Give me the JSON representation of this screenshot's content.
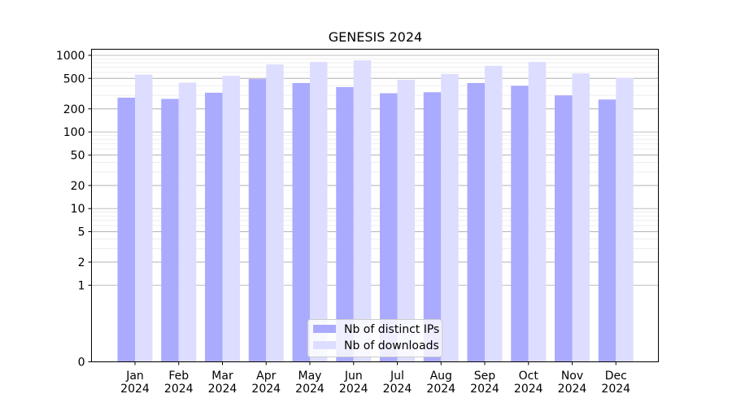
{
  "chart_data": {
    "type": "bar",
    "title": "GENESIS 2024",
    "xlabel": "",
    "ylabel": "",
    "y_scale": "symlog",
    "ylim": [
      0,
      1200
    ],
    "y_major_ticks": [
      0,
      1,
      2,
      5,
      10,
      20,
      50,
      100,
      200,
      500,
      1000
    ],
    "y_major_tick_labels": [
      "0",
      "1",
      "2",
      "5",
      "10",
      "20",
      "50",
      "100",
      "200",
      "500",
      "1000"
    ],
    "grid": "horizontal",
    "legend_position": "bottom-center",
    "categories": [
      {
        "month": "Jan",
        "year": "2024"
      },
      {
        "month": "Feb",
        "year": "2024"
      },
      {
        "month": "Mar",
        "year": "2024"
      },
      {
        "month": "Apr",
        "year": "2024"
      },
      {
        "month": "May",
        "year": "2024"
      },
      {
        "month": "Jun",
        "year": "2024"
      },
      {
        "month": "Jul",
        "year": "2024"
      },
      {
        "month": "Aug",
        "year": "2024"
      },
      {
        "month": "Sep",
        "year": "2024"
      },
      {
        "month": "Oct",
        "year": "2024"
      },
      {
        "month": "Nov",
        "year": "2024"
      },
      {
        "month": "Dec",
        "year": "2024"
      }
    ],
    "series": [
      {
        "name": "Nb of distinct IPs",
        "color": "#aaaaff",
        "values": [
          280,
          270,
          325,
          490,
          435,
          385,
          320,
          330,
          435,
          400,
          300,
          265
        ]
      },
      {
        "name": "Nb of downloads",
        "color": "#ddddff",
        "values": [
          560,
          440,
          540,
          760,
          820,
          860,
          480,
          570,
          730,
          820,
          580,
          510
        ]
      }
    ]
  }
}
